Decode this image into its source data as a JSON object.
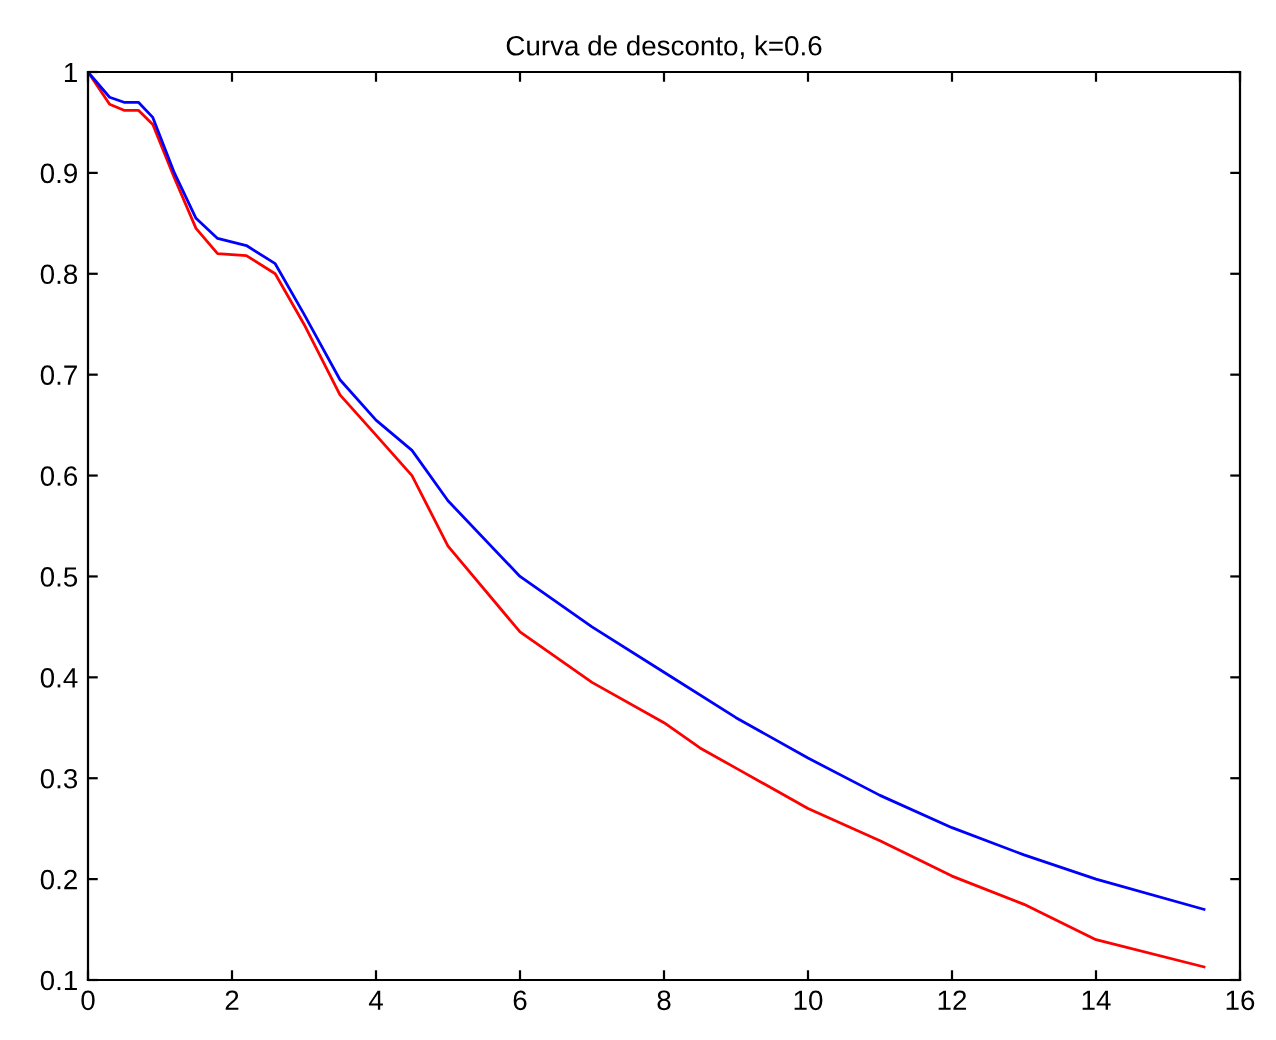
{
  "chart_data": {
    "type": "line",
    "title": "Curva de desconto, k=0.6",
    "series": [
      {
        "color": "#0000ff",
        "x": [
          0,
          0.3,
          0.5,
          0.7,
          0.9,
          1.2,
          1.5,
          1.8,
          2.2,
          2.6,
          3,
          3.5,
          4,
          4.5,
          5,
          6,
          7,
          8,
          9,
          10,
          11,
          12,
          13,
          14,
          15.5
        ],
        "values": [
          1,
          0.975,
          0.97,
          0.97,
          0.955,
          0.9,
          0.855,
          0.835,
          0.828,
          0.81,
          0.76,
          0.695,
          0.655,
          0.625,
          0.575,
          0.5,
          0.45,
          0.405,
          0.36,
          0.32,
          0.283,
          0.251,
          0.224,
          0.2,
          0.17
        ]
      },
      {
        "color": "#ff0000",
        "x": [
          0,
          0.3,
          0.5,
          0.7,
          0.9,
          1.2,
          1.5,
          1.8,
          2.2,
          2.6,
          3,
          3.5,
          4,
          4.5,
          5,
          6,
          7,
          8,
          8.5,
          9,
          10,
          11,
          12,
          13,
          14,
          15.5
        ],
        "values": [
          1,
          0.968,
          0.962,
          0.962,
          0.948,
          0.895,
          0.845,
          0.82,
          0.818,
          0.8,
          0.75,
          0.68,
          0.64,
          0.6,
          0.53,
          0.445,
          0.395,
          0.355,
          0.33,
          0.31,
          0.27,
          0.238,
          0.203,
          0.175,
          0.14,
          0.113
        ]
      }
    ],
    "xlim": [
      0,
      16
    ],
    "xticks": [
      0,
      2,
      4,
      6,
      8,
      10,
      12,
      14,
      16
    ],
    "ylim": [
      0.1,
      1
    ],
    "yticks": [
      0.1,
      0.2,
      0.3,
      0.4,
      0.5,
      0.6,
      0.7,
      0.8,
      0.9,
      1
    ],
    "grid": false,
    "legend": false
  }
}
